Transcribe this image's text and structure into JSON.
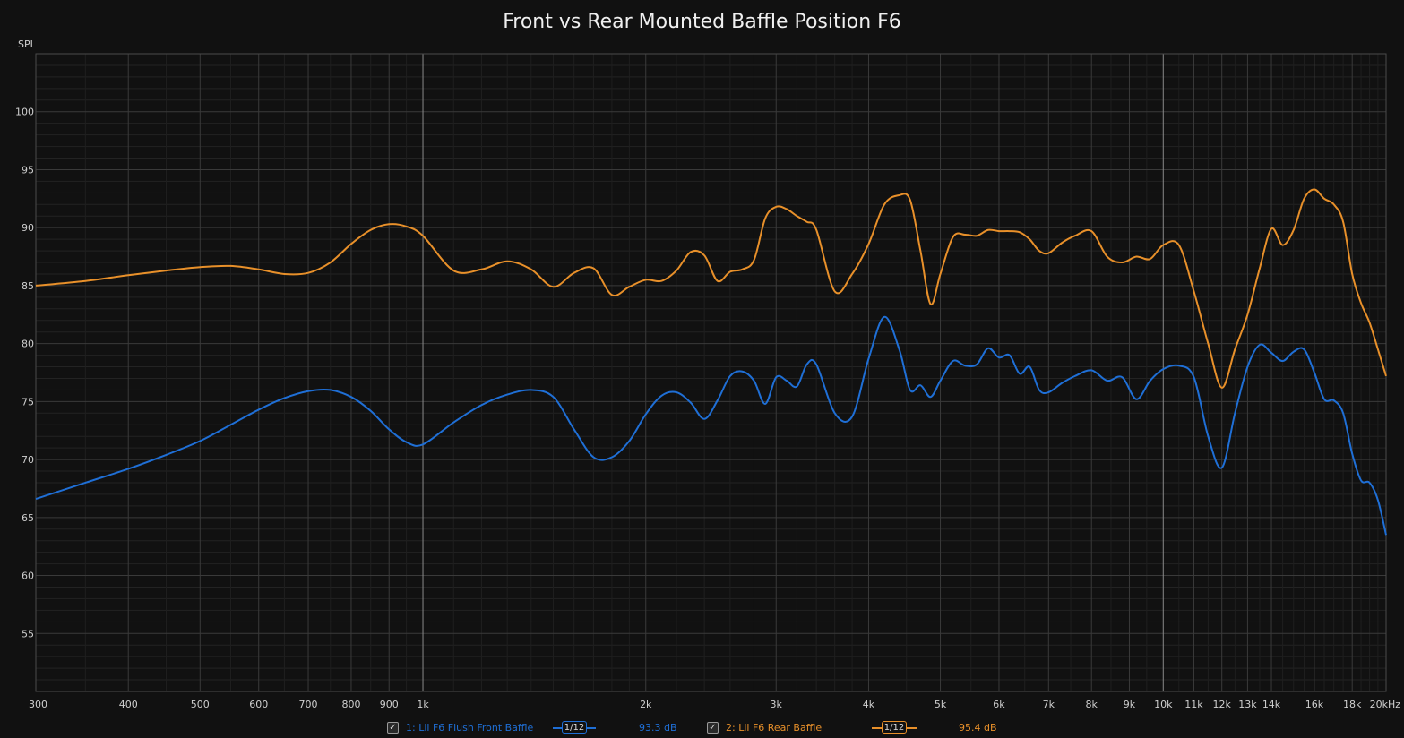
{
  "chart_data": {
    "type": "line",
    "title": "Front vs Rear Mounted Baffle Position F6",
    "ylabel": "SPL",
    "xlabel": "",
    "x_scale": "log",
    "xlim": [
      300,
      20000
    ],
    "ylim": [
      50,
      105
    ],
    "y_ticks": [
      55,
      60,
      65,
      70,
      75,
      80,
      85,
      90,
      95,
      100
    ],
    "x_ticks": [
      {
        "value": 300,
        "label": "300"
      },
      {
        "value": 400,
        "label": "400"
      },
      {
        "value": 500,
        "label": "500"
      },
      {
        "value": 600,
        "label": "600"
      },
      {
        "value": 700,
        "label": "700"
      },
      {
        "value": 800,
        "label": "800"
      },
      {
        "value": 900,
        "label": "900"
      },
      {
        "value": 1000,
        "label": "1k"
      },
      {
        "value": 2000,
        "label": "2k"
      },
      {
        "value": 3000,
        "label": "3k"
      },
      {
        "value": 4000,
        "label": "4k"
      },
      {
        "value": 5000,
        "label": "5k"
      },
      {
        "value": 6000,
        "label": "6k"
      },
      {
        "value": 7000,
        "label": "7k"
      },
      {
        "value": 8000,
        "label": "8k"
      },
      {
        "value": 9000,
        "label": "9k"
      },
      {
        "value": 10000,
        "label": "10k"
      },
      {
        "value": 11000,
        "label": "11k"
      },
      {
        "value": 12000,
        "label": "12k"
      },
      {
        "value": 13000,
        "label": "13k"
      },
      {
        "value": 14000,
        "label": "14k"
      },
      {
        "value": 16000,
        "label": "16k"
      },
      {
        "value": 18000,
        "label": "18k"
      },
      {
        "value": 20000,
        "label": "20kHz"
      }
    ],
    "grid": true,
    "legend_position": "bottom",
    "series": [
      {
        "name": "1: Lii F6 Flush Front Baffle",
        "color": "#1f6fd6",
        "smoothing": "1/12",
        "level": "93.3 dB",
        "points": [
          [
            300,
            66.6
          ],
          [
            350,
            68.0
          ],
          [
            400,
            69.2
          ],
          [
            450,
            70.4
          ],
          [
            500,
            71.6
          ],
          [
            550,
            73.0
          ],
          [
            600,
            74.3
          ],
          [
            650,
            75.3
          ],
          [
            700,
            75.9
          ],
          [
            750,
            76.0
          ],
          [
            800,
            75.4
          ],
          [
            850,
            74.2
          ],
          [
            900,
            72.6
          ],
          [
            950,
            71.5
          ],
          [
            1000,
            71.3
          ],
          [
            1100,
            73.2
          ],
          [
            1200,
            74.7
          ],
          [
            1300,
            75.6
          ],
          [
            1400,
            76.0
          ],
          [
            1500,
            75.4
          ],
          [
            1600,
            72.6
          ],
          [
            1700,
            70.2
          ],
          [
            1800,
            70.2
          ],
          [
            1900,
            71.6
          ],
          [
            2000,
            73.9
          ],
          [
            2100,
            75.5
          ],
          [
            2200,
            75.8
          ],
          [
            2300,
            74.9
          ],
          [
            2400,
            73.5
          ],
          [
            2500,
            75.1
          ],
          [
            2600,
            77.2
          ],
          [
            2700,
            77.6
          ],
          [
            2800,
            76.8
          ],
          [
            2900,
            74.8
          ],
          [
            3000,
            77.1
          ],
          [
            3100,
            76.8
          ],
          [
            3200,
            76.3
          ],
          [
            3300,
            78.2
          ],
          [
            3400,
            78.2
          ],
          [
            3600,
            74.0
          ],
          [
            3800,
            73.7
          ],
          [
            4000,
            78.7
          ],
          [
            4200,
            82.3
          ],
          [
            4400,
            79.5
          ],
          [
            4550,
            76.0
          ],
          [
            4700,
            76.4
          ],
          [
            4850,
            75.4
          ],
          [
            5000,
            76.8
          ],
          [
            5200,
            78.5
          ],
          [
            5400,
            78.1
          ],
          [
            5600,
            78.2
          ],
          [
            5800,
            79.6
          ],
          [
            6000,
            78.8
          ],
          [
            6200,
            79.0
          ],
          [
            6400,
            77.4
          ],
          [
            6600,
            78.0
          ],
          [
            6800,
            76.0
          ],
          [
            7000,
            75.8
          ],
          [
            7300,
            76.6
          ],
          [
            7600,
            77.2
          ],
          [
            8000,
            77.7
          ],
          [
            8400,
            76.8
          ],
          [
            8800,
            77.1
          ],
          [
            9200,
            75.2
          ],
          [
            9600,
            76.8
          ],
          [
            10000,
            77.8
          ],
          [
            10500,
            78.1
          ],
          [
            11000,
            77.1
          ],
          [
            11500,
            72.0
          ],
          [
            12000,
            69.3
          ],
          [
            12500,
            74.0
          ],
          [
            13000,
            78.0
          ],
          [
            13500,
            79.9
          ],
          [
            14000,
            79.2
          ],
          [
            14500,
            78.5
          ],
          [
            15000,
            79.3
          ],
          [
            15500,
            79.5
          ],
          [
            16000,
            77.5
          ],
          [
            16500,
            75.2
          ],
          [
            17000,
            75.1
          ],
          [
            17500,
            74.0
          ],
          [
            18000,
            70.5
          ],
          [
            18500,
            68.2
          ],
          [
            19000,
            68.0
          ],
          [
            19500,
            66.5
          ],
          [
            20000,
            63.5
          ]
        ]
      },
      {
        "name": "2: Lii F6 Rear Baffle",
        "color": "#e8902a",
        "smoothing": "1/12",
        "level": "95.4 dB",
        "points": [
          [
            300,
            85.0
          ],
          [
            350,
            85.4
          ],
          [
            400,
            85.9
          ],
          [
            450,
            86.3
          ],
          [
            500,
            86.6
          ],
          [
            550,
            86.7
          ],
          [
            600,
            86.4
          ],
          [
            650,
            86.0
          ],
          [
            700,
            86.1
          ],
          [
            750,
            87.0
          ],
          [
            800,
            88.6
          ],
          [
            850,
            89.8
          ],
          [
            900,
            90.3
          ],
          [
            950,
            90.1
          ],
          [
            1000,
            89.3
          ],
          [
            1100,
            86.3
          ],
          [
            1200,
            86.4
          ],
          [
            1300,
            87.1
          ],
          [
            1400,
            86.4
          ],
          [
            1500,
            84.9
          ],
          [
            1600,
            86.1
          ],
          [
            1700,
            86.5
          ],
          [
            1800,
            84.2
          ],
          [
            1900,
            84.9
          ],
          [
            2000,
            85.5
          ],
          [
            2100,
            85.4
          ],
          [
            2200,
            86.3
          ],
          [
            2300,
            87.9
          ],
          [
            2400,
            87.6
          ],
          [
            2500,
            85.4
          ],
          [
            2600,
            86.2
          ],
          [
            2700,
            86.4
          ],
          [
            2800,
            87.2
          ],
          [
            2900,
            90.8
          ],
          [
            3000,
            91.8
          ],
          [
            3100,
            91.6
          ],
          [
            3200,
            91.0
          ],
          [
            3300,
            90.5
          ],
          [
            3400,
            89.8
          ],
          [
            3600,
            84.5
          ],
          [
            3800,
            86.0
          ],
          [
            4000,
            88.6
          ],
          [
            4200,
            92.0
          ],
          [
            4400,
            92.8
          ],
          [
            4550,
            92.4
          ],
          [
            4700,
            88.0
          ],
          [
            4850,
            83.4
          ],
          [
            5000,
            86.0
          ],
          [
            5200,
            89.2
          ],
          [
            5400,
            89.4
          ],
          [
            5600,
            89.3
          ],
          [
            5800,
            89.8
          ],
          [
            6000,
            89.7
          ],
          [
            6200,
            89.7
          ],
          [
            6400,
            89.6
          ],
          [
            6600,
            89.0
          ],
          [
            6800,
            88.0
          ],
          [
            7000,
            87.8
          ],
          [
            7300,
            88.7
          ],
          [
            7600,
            89.3
          ],
          [
            8000,
            89.7
          ],
          [
            8400,
            87.5
          ],
          [
            8800,
            87.0
          ],
          [
            9200,
            87.5
          ],
          [
            9600,
            87.3
          ],
          [
            10000,
            88.5
          ],
          [
            10500,
            88.5
          ],
          [
            11000,
            84.5
          ],
          [
            11500,
            80.0
          ],
          [
            12000,
            76.2
          ],
          [
            12500,
            79.5
          ],
          [
            13000,
            82.5
          ],
          [
            13500,
            86.5
          ],
          [
            14000,
            89.9
          ],
          [
            14500,
            88.5
          ],
          [
            15000,
            89.8
          ],
          [
            15500,
            92.5
          ],
          [
            16000,
            93.3
          ],
          [
            16500,
            92.5
          ],
          [
            17000,
            92.0
          ],
          [
            17500,
            90.5
          ],
          [
            18000,
            86.0
          ],
          [
            18500,
            83.5
          ],
          [
            19000,
            81.8
          ],
          [
            19500,
            79.5
          ],
          [
            20000,
            77.2
          ]
        ]
      }
    ]
  }
}
